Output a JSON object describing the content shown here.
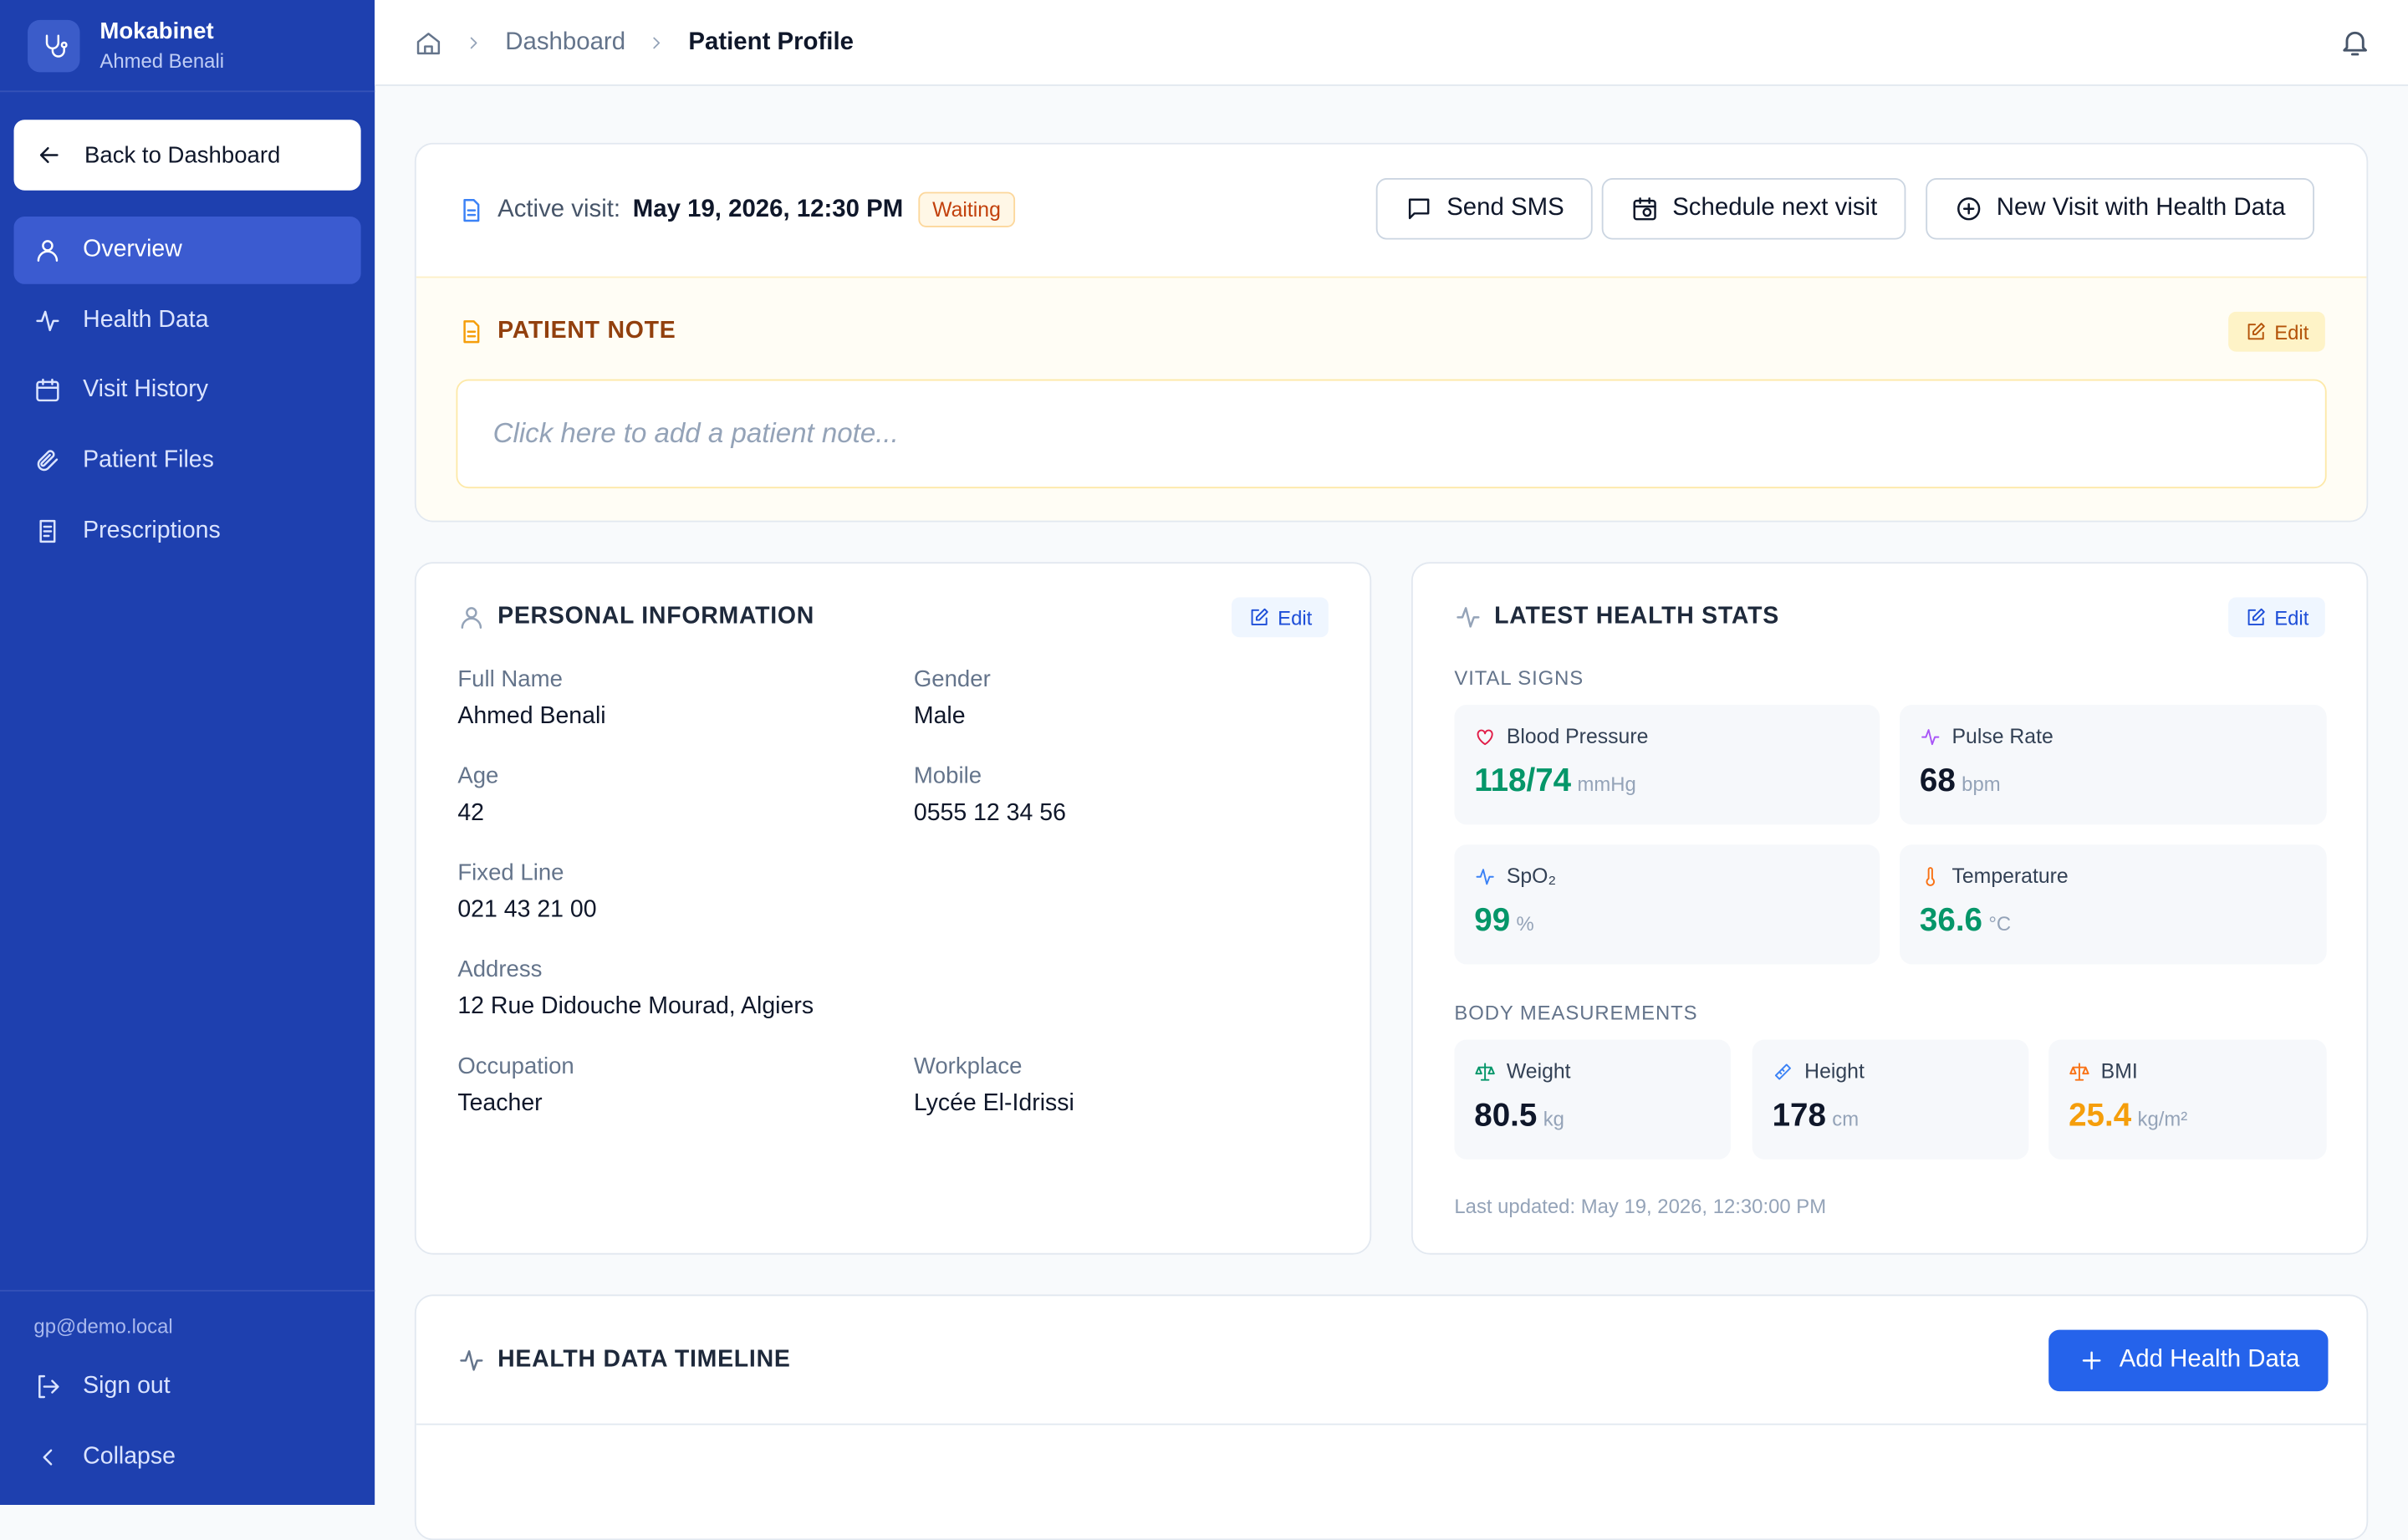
{
  "sidebar": {
    "app_name": "Mokabinet",
    "user": "Ahmed Benali",
    "back": "Back to Dashboard",
    "nav": [
      "Overview",
      "Health Data",
      "Visit History",
      "Patient Files",
      "Prescriptions"
    ],
    "email": "gp@demo.local",
    "sign_out": "Sign out",
    "collapse": "Collapse"
  },
  "breadcrumb": [
    "Dashboard",
    "Patient Profile"
  ],
  "visit": {
    "label": "Active visit:",
    "date": "May 19, 2026, 12:30 PM",
    "status": "Waiting",
    "actions": [
      "Send SMS",
      "Schedule next visit",
      "New Visit with Health Data"
    ]
  },
  "note": {
    "title": "PATIENT NOTE",
    "edit": "Edit",
    "placeholder": "Click here to add a patient note..."
  },
  "personal": {
    "title": "PERSONAL INFORMATION",
    "edit": "Edit",
    "fields": [
      {
        "label": "Full Name",
        "value": "Ahmed Benali"
      },
      {
        "label": "Gender",
        "value": "Male"
      },
      {
        "label": "Age",
        "value": 42
      },
      {
        "label": "Mobile",
        "value": "0555 12 34 56"
      },
      {
        "label": "Fixed Line",
        "value": "021 43 21 00"
      },
      {
        "label": "Address",
        "value": "12 Rue Didouche Mourad, Algiers"
      },
      {
        "label": "Occupation",
        "value": "Teacher"
      },
      {
        "label": "Workplace",
        "value": "Lycée El-Idrissi"
      }
    ]
  },
  "health": {
    "title": "LATEST HEALTH STATS",
    "edit": "Edit",
    "vitals_title": "VITAL SIGNS",
    "vitals": [
      {
        "label": "Blood Pressure",
        "value": "118/74",
        "unit": "mmHg"
      },
      {
        "label": "Pulse Rate",
        "value": 68,
        "unit": "bpm"
      },
      {
        "label": "SpO₂",
        "value": 99,
        "unit": "%"
      },
      {
        "label": "Temperature",
        "value": 36.6,
        "unit": "°C"
      }
    ],
    "body_title": "BODY MEASUREMENTS",
    "body": [
      {
        "label": "Weight",
        "value": 80.5,
        "unit": "kg"
      },
      {
        "label": "Height",
        "value": 178,
        "unit": "cm"
      },
      {
        "label": "BMI",
        "value": 25.4,
        "unit": "kg/m²"
      }
    ],
    "updated": "Last updated: May 19, 2026, 12:30:00 PM"
  },
  "timeline": {
    "title": "HEALTH DATA TIMELINE",
    "add": "Add Health Data"
  }
}
